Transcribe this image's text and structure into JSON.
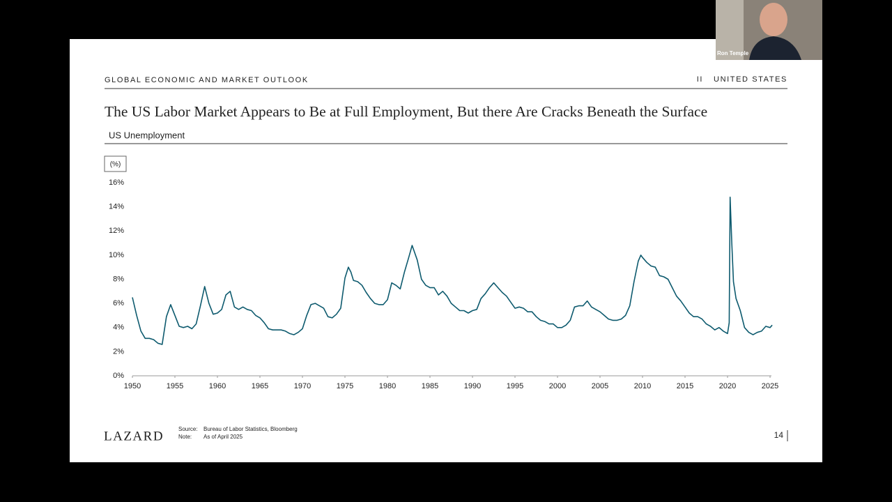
{
  "video": {
    "participant": "Ron Temple"
  },
  "header": {
    "left": "GLOBAL ECONOMIC AND MARKET OUTLOOK",
    "section_number": "II",
    "section": "UNITED STATES"
  },
  "slide": {
    "title": "The US Labor Market Appears to Be at Full Employment, But there Are Cracks Beneath the Surface",
    "page": "14"
  },
  "footer": {
    "logo": "LAZARD",
    "source_label": "Source:",
    "source": "Bureau of Labor Statistics, Bloomberg",
    "note_label": "Note:",
    "note": "As of April 2025"
  },
  "chart_data": {
    "type": "line",
    "title": "US Unemployment",
    "y_unit": "(%)",
    "xlim": [
      1950,
      2025
    ],
    "xticks": [
      1950,
      1955,
      1960,
      1965,
      1970,
      1975,
      1980,
      1985,
      1990,
      1995,
      2000,
      2005,
      2010,
      2015,
      2020,
      2025
    ],
    "ylim": [
      0,
      16
    ],
    "yticks": [
      {
        "value": 0,
        "label": "0%"
      },
      {
        "value": 2,
        "label": "2%"
      },
      {
        "value": 4,
        "label": "4%"
      },
      {
        "value": 6,
        "label": "6%"
      },
      {
        "value": 8,
        "label": "8%"
      },
      {
        "value": 10,
        "label": "10%"
      },
      {
        "value": 12,
        "label": "12%"
      },
      {
        "value": 14,
        "label": "14%"
      },
      {
        "value": 16,
        "label": "16%"
      }
    ],
    "grid": false,
    "series": [
      {
        "name": "US Unemployment",
        "color": "#0d5a6e",
        "x": [
          1950.0,
          1950.5,
          1951.0,
          1951.5,
          1952.0,
          1952.5,
          1953.0,
          1953.5,
          1954.0,
          1954.5,
          1955.0,
          1955.5,
          1956.0,
          1956.5,
          1957.0,
          1957.5,
          1958.0,
          1958.5,
          1959.0,
          1959.5,
          1960.0,
          1960.5,
          1961.0,
          1961.5,
          1962.0,
          1962.5,
          1963.0,
          1963.5,
          1964.0,
          1964.5,
          1965.0,
          1965.5,
          1966.0,
          1966.5,
          1967.0,
          1967.5,
          1968.0,
          1968.5,
          1969.0,
          1969.5,
          1970.0,
          1970.5,
          1971.0,
          1971.5,
          1972.0,
          1972.5,
          1973.0,
          1973.5,
          1974.0,
          1974.5,
          1975.0,
          1975.4,
          1975.7,
          1976.0,
          1976.5,
          1977.0,
          1977.5,
          1978.0,
          1978.5,
          1979.0,
          1979.5,
          1980.0,
          1980.5,
          1981.0,
          1981.5,
          1982.0,
          1982.5,
          1982.9,
          1983.5,
          1984.0,
          1984.5,
          1985.0,
          1985.5,
          1986.0,
          1986.5,
          1987.0,
          1987.5,
          1988.0,
          1988.5,
          1989.0,
          1989.5,
          1990.0,
          1990.5,
          1991.0,
          1991.5,
          1992.0,
          1992.5,
          1993.0,
          1993.5,
          1994.0,
          1994.5,
          1995.0,
          1995.5,
          1996.0,
          1996.5,
          1997.0,
          1997.5,
          1998.0,
          1998.5,
          1999.0,
          1999.5,
          2000.0,
          2000.5,
          2001.0,
          2001.5,
          2002.0,
          2002.5,
          2003.0,
          2003.5,
          2004.0,
          2004.5,
          2005.0,
          2005.5,
          2006.0,
          2006.5,
          2007.0,
          2007.5,
          2008.0,
          2008.5,
          2009.0,
          2009.5,
          2009.8,
          2010.0,
          2010.5,
          2011.0,
          2011.5,
          2012.0,
          2012.5,
          2013.0,
          2013.5,
          2014.0,
          2014.5,
          2015.0,
          2015.5,
          2016.0,
          2016.5,
          2017.0,
          2017.5,
          2018.0,
          2018.5,
          2019.0,
          2019.5,
          2020.0,
          2020.2,
          2020.3,
          2020.5,
          2020.7,
          2021.0,
          2021.5,
          2022.0,
          2022.5,
          2023.0,
          2023.5,
          2024.0,
          2024.5,
          2025.0,
          2025.25
        ],
        "values": [
          6.5,
          5.0,
          3.7,
          3.1,
          3.1,
          3.0,
          2.7,
          2.6,
          4.9,
          5.9,
          5.0,
          4.1,
          4.0,
          4.1,
          3.9,
          4.3,
          5.8,
          7.4,
          6.0,
          5.1,
          5.2,
          5.5,
          6.7,
          7.0,
          5.7,
          5.5,
          5.7,
          5.5,
          5.4,
          5.0,
          4.8,
          4.4,
          3.9,
          3.8,
          3.8,
          3.8,
          3.7,
          3.5,
          3.4,
          3.6,
          3.9,
          5.0,
          5.9,
          6.0,
          5.8,
          5.6,
          4.9,
          4.8,
          5.1,
          5.6,
          8.1,
          9.0,
          8.6,
          7.9,
          7.8,
          7.5,
          6.9,
          6.4,
          6.0,
          5.9,
          5.9,
          6.3,
          7.7,
          7.5,
          7.2,
          8.6,
          9.8,
          10.8,
          9.6,
          8.0,
          7.5,
          7.3,
          7.3,
          6.7,
          7.0,
          6.6,
          6.0,
          5.7,
          5.4,
          5.4,
          5.2,
          5.4,
          5.5,
          6.4,
          6.8,
          7.3,
          7.7,
          7.3,
          6.9,
          6.6,
          6.1,
          5.6,
          5.7,
          5.6,
          5.3,
          5.3,
          4.9,
          4.6,
          4.5,
          4.3,
          4.3,
          4.0,
          4.0,
          4.2,
          4.6,
          5.7,
          5.8,
          5.8,
          6.2,
          5.7,
          5.5,
          5.3,
          5.0,
          4.7,
          4.6,
          4.6,
          4.7,
          5.0,
          5.8,
          7.8,
          9.5,
          10.0,
          9.8,
          9.4,
          9.1,
          9.0,
          8.3,
          8.2,
          8.0,
          7.3,
          6.6,
          6.2,
          5.7,
          5.2,
          4.9,
          4.9,
          4.7,
          4.3,
          4.1,
          3.8,
          4.0,
          3.7,
          3.5,
          4.4,
          14.8,
          11.0,
          7.8,
          6.4,
          5.4,
          4.0,
          3.6,
          3.4,
          3.6,
          3.7,
          4.1,
          4.0,
          4.2
        ]
      }
    ]
  }
}
